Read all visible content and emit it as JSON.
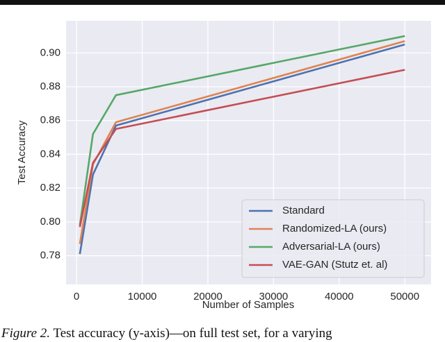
{
  "chart_data": {
    "type": "line",
    "x_label": "Number of Samples",
    "y_label": "Test Accuracy",
    "x": [
      500,
      2500,
      6000,
      50000
    ],
    "series": [
      {
        "name": "Standard",
        "color": "#4c72b0",
        "values": [
          0.781,
          0.828,
          0.857,
          0.905
        ]
      },
      {
        "name": "Randomized-LA (ours)",
        "color": "#dd8452",
        "values": [
          0.787,
          0.834,
          0.859,
          0.907
        ]
      },
      {
        "name": "Adversarial-LA (ours)",
        "color": "#55a868",
        "values": [
          0.798,
          0.852,
          0.875,
          0.91
        ]
      },
      {
        "name": "VAE-GAN (Stutz et. al)",
        "color": "#c44e52",
        "values": [
          0.797,
          0.835,
          0.855,
          0.89
        ]
      }
    ],
    "xlim": [
      -1600,
      54000
    ],
    "xticks": [
      0,
      10000,
      20000,
      30000,
      40000,
      50000
    ],
    "ylim": [
      0.763,
      0.919
    ],
    "yticks": [
      0.78,
      {
        "value": 0.8,
        "label": "0.80"
      },
      0.82,
      0.84,
      0.86,
      0.88,
      {
        "value": 0.9,
        "label": "0.90"
      }
    ],
    "grid": true,
    "legend": "lower right"
  },
  "caption": {
    "label": "Figure 2.",
    "text": "Test accuracy (y-axis)—on full test set, for a varying"
  }
}
